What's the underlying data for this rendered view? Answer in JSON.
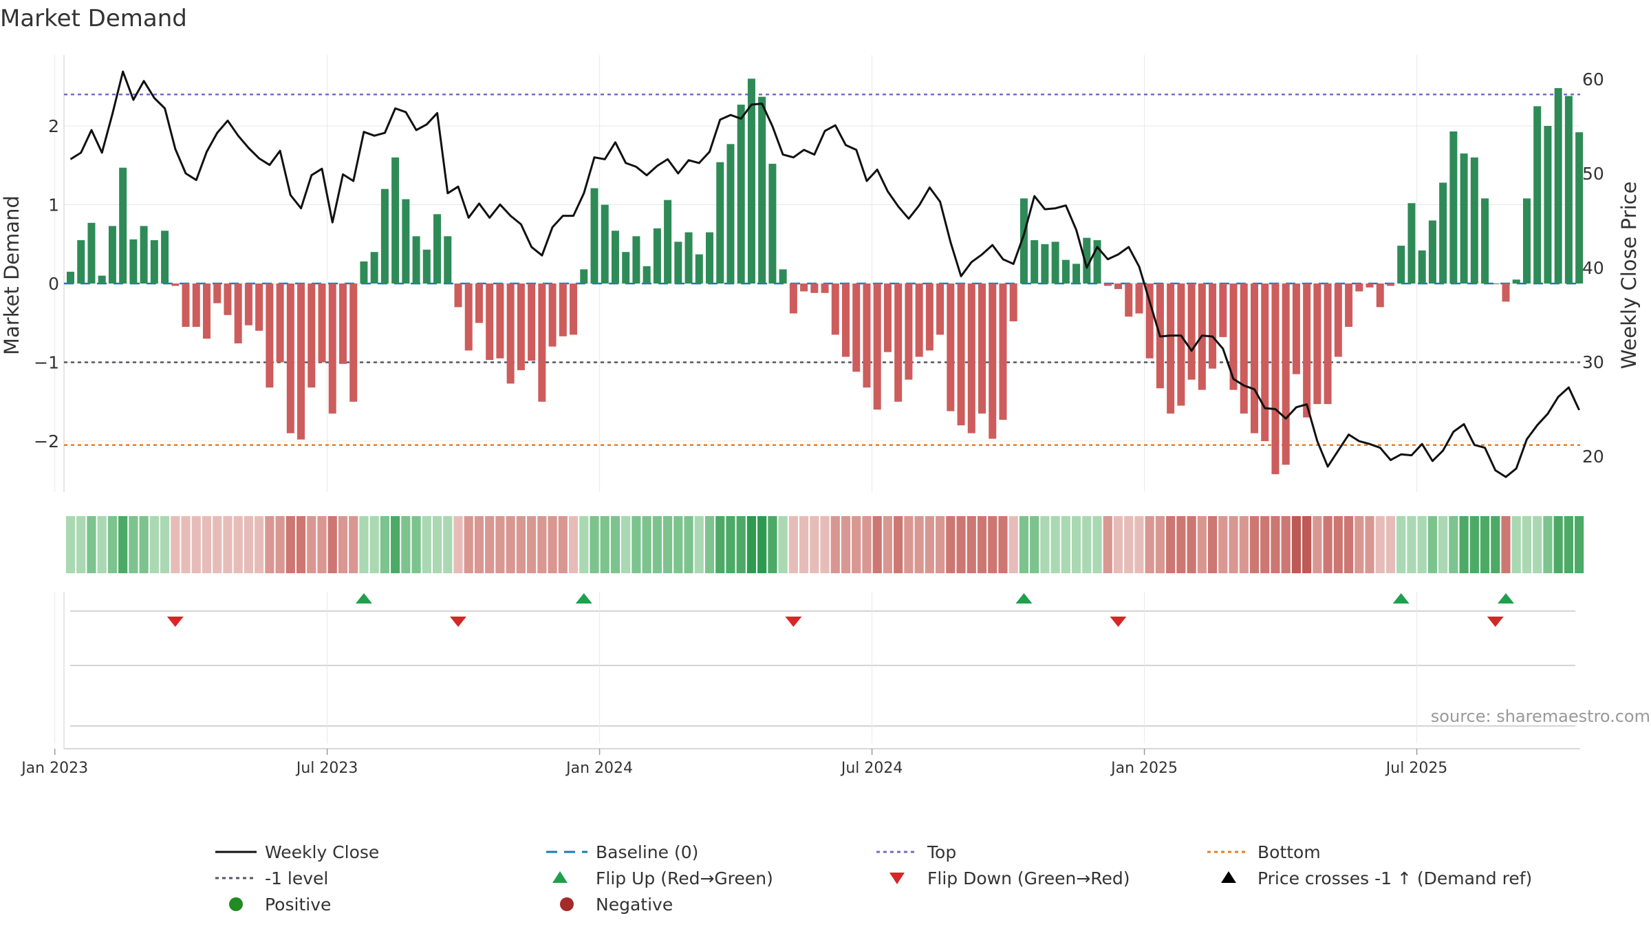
{
  "chart_data": {
    "type": "bar",
    "title": "Market Demand",
    "ylabel_left": "Market Demand",
    "ylabel_right": "Weekly Close Price",
    "ylim_left": [
      -2.7,
      2.9
    ],
    "ylim_right": [
      15.4,
      62
    ],
    "left_ticks": [
      "2",
      "1",
      "0",
      "−1",
      "−2"
    ],
    "left_tick_values": [
      2,
      1,
      0,
      -1,
      -2
    ],
    "right_ticks": [
      "60",
      "50",
      "40",
      "30",
      "20"
    ],
    "right_tick_values": [
      60,
      50,
      40,
      30,
      20
    ],
    "x_ticks": [
      "Jan 2023",
      "Jul 2023",
      "Jan 2024",
      "Jul 2024",
      "Jan 2025",
      "Jul 2025"
    ],
    "x_tick_weeks": [
      0,
      26,
      52,
      78,
      104,
      130
    ],
    "first_week_offset": -1.5,
    "reference_lines": {
      "top": 2.4,
      "bottom": -2.05,
      "minus_one": -1,
      "baseline": 0
    },
    "demand": [
      0.15,
      0.55,
      0.77,
      0.1,
      0.73,
      1.47,
      0.56,
      0.73,
      0.55,
      0.67,
      -0.03,
      -0.55,
      -0.55,
      -0.7,
      -0.25,
      -0.4,
      -0.76,
      -0.53,
      -0.6,
      -1.32,
      -1.0,
      -1.9,
      -1.98,
      -1.32,
      -1.0,
      -1.65,
      -1.02,
      -1.5,
      0.28,
      0.4,
      1.2,
      1.6,
      1.07,
      0.6,
      0.43,
      0.88,
      0.6,
      -0.3,
      -0.85,
      -0.5,
      -0.97,
      -0.95,
      -1.27,
      -1.1,
      -0.98,
      -1.5,
      -0.8,
      -0.67,
      -0.65,
      0.18,
      1.21,
      1.0,
      0.67,
      0.4,
      0.6,
      0.22,
      0.7,
      1.06,
      0.53,
      0.65,
      0.37,
      0.65,
      1.54,
      1.77,
      2.27,
      2.6,
      2.37,
      1.52,
      0.18,
      -0.38,
      -0.1,
      -0.12,
      -0.12,
      -0.65,
      -0.93,
      -1.12,
      -1.32,
      -1.6,
      -0.87,
      -1.5,
      -1.22,
      -0.93,
      -0.85,
      -0.65,
      -1.62,
      -1.8,
      -1.9,
      -1.65,
      -1.97,
      -1.73,
      -0.48,
      1.08,
      0.55,
      0.5,
      0.53,
      0.3,
      0.25,
      0.58,
      0.55,
      -0.03,
      -0.07,
      -0.42,
      -0.38,
      -0.95,
      -1.33,
      -1.65,
      -1.55,
      -1.22,
      -1.35,
      -1.08,
      -0.68,
      -1.35,
      -1.65,
      -1.9,
      -2.0,
      -2.42,
      -2.3,
      -1.15,
      -1.7,
      -1.53,
      -1.53,
      -0.93,
      -0.55,
      -0.1,
      -0.05,
      -0.3,
      -0.03,
      0.48,
      1.02,
      0.42,
      0.8,
      1.28,
      1.93,
      1.65,
      1.6,
      1.08,
      0.0,
      -0.23,
      0.05,
      1.08,
      2.25,
      2.0,
      2.48,
      2.38,
      1.92
    ],
    "close": [
      51.5,
      52.2,
      54.6,
      52.2,
      56.3,
      60.8,
      57.8,
      59.8,
      58.0,
      56.9,
      52.6,
      50.0,
      49.3,
      52.3,
      54.3,
      55.6,
      54.0,
      52.7,
      51.6,
      50.9,
      52.4,
      47.7,
      46.3,
      49.8,
      50.5,
      44.8,
      49.9,
      49.2,
      54.4,
      54.0,
      54.3,
      56.9,
      56.5,
      54.6,
      55.2,
      56.4,
      47.9,
      48.6,
      45.3,
      46.8,
      45.3,
      46.7,
      45.5,
      44.6,
      42.2,
      41.3,
      44.3,
      45.5,
      45.5,
      47.9,
      51.7,
      51.5,
      53.3,
      51.1,
      50.7,
      49.8,
      50.8,
      51.5,
      50.0,
      51.4,
      51.1,
      52.3,
      55.7,
      56.2,
      55.8,
      57.3,
      57.4,
      55.0,
      52.0,
      51.7,
      52.5,
      52.0,
      54.5,
      55.1,
      53.0,
      52.5,
      49.2,
      50.4,
      48.1,
      46.5,
      45.2,
      46.6,
      48.5,
      47.0,
      42.7,
      39.1,
      40.6,
      41.4,
      42.4,
      40.9,
      40.4,
      43.5,
      47.6,
      46.2,
      46.3,
      46.6,
      44.0,
      40.0,
      42.2,
      40.9,
      41.4,
      42.2,
      40.1,
      36.4,
      32.7,
      32.8,
      32.8,
      31.2,
      32.8,
      32.7,
      31.4,
      28.2,
      27.5,
      27.1,
      25.1,
      25.0,
      24.0,
      25.2,
      25.5,
      21.6,
      18.9,
      20.6,
      22.3,
      21.6,
      21.3,
      20.9,
      19.6,
      20.2,
      20.1,
      21.3,
      19.5,
      20.6,
      22.6,
      23.4,
      21.2,
      20.9,
      18.5,
      17.8,
      18.7,
      21.8,
      23.3,
      24.5,
      26.3,
      27.3,
      24.9
    ],
    "heatmap_levels": [
      1,
      1,
      2,
      1,
      2,
      3,
      2,
      2,
      1,
      1,
      1,
      1,
      1,
      1,
      1,
      1,
      1,
      1,
      1,
      2,
      2,
      3,
      3,
      2,
      2,
      3,
      2,
      2,
      1,
      1,
      2,
      3,
      2,
      2,
      1,
      1,
      1,
      1,
      2,
      2,
      2,
      2,
      2,
      2,
      2,
      2,
      2,
      2,
      1,
      1,
      2,
      2,
      2,
      1,
      2,
      2,
      2,
      2,
      2,
      2,
      1,
      2,
      3,
      3,
      3,
      4,
      4,
      3,
      1,
      1,
      1,
      1,
      1,
      2,
      2,
      2,
      2,
      3,
      2,
      3,
      2,
      2,
      2,
      2,
      3,
      3,
      3,
      3,
      3,
      3,
      1,
      2,
      2,
      1,
      1,
      1,
      1,
      1,
      1,
      2,
      1,
      1,
      1,
      2,
      2,
      3,
      3,
      3,
      2,
      3,
      2,
      2,
      2,
      3,
      3,
      3,
      3,
      4,
      4,
      2,
      3,
      3,
      3,
      2,
      2,
      1,
      1,
      1,
      1,
      1,
      2,
      1,
      2,
      3,
      3,
      3,
      3,
      3,
      1,
      1,
      1,
      2,
      3,
      3,
      3,
      3,
      3
    ],
    "flips_up": [
      28,
      49,
      91,
      127,
      137
    ],
    "flips_down": [
      10,
      37,
      69,
      100,
      136
    ],
    "colors": {
      "green": "#2e8b57",
      "red": "#cd5c5c",
      "line": "#111111",
      "top": "#7b68c8",
      "bottom": "#e67e22",
      "minus_one": "#555566",
      "baseline": "#1f77b4",
      "flip_up": "#1ea04e",
      "flip_down": "#d62728",
      "grid": "#e8e8e8",
      "axis": "#cccccc"
    }
  },
  "source_text": "source: sharemaestro.com",
  "legend": {
    "weekly_close": "Weekly Close",
    "baseline": "Baseline (0)",
    "top": "Top",
    "bottom": "Bottom",
    "minus_one": "-1 level",
    "flip_up": "Flip Up (Red→Green)",
    "flip_down": "Flip Down (Green→Red)",
    "price_cross": "Price crosses -1 ↑ (Demand ref)",
    "positive": "Positive",
    "negative": "Negative"
  }
}
